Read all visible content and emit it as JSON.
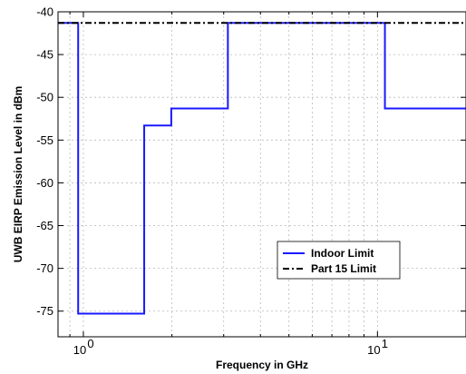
{
  "chart_data": {
    "type": "line",
    "xlabel": "Frequency in GHz",
    "ylabel": "UWB EIRP Emission Level in dBm",
    "xscale": "log",
    "xlim": [
      0.82,
      20
    ],
    "ylim": [
      -78,
      -40
    ],
    "grid": true,
    "legend_position": "lower-right",
    "yticks": [
      -40,
      -45,
      -50,
      -55,
      -60,
      -65,
      -70,
      -75
    ],
    "ytick_labels": [
      "-40",
      "-45",
      "-50",
      "-55",
      "-60",
      "-65",
      "-70",
      "-75"
    ],
    "xticks": [
      1,
      10
    ],
    "xtick_labels": [
      {
        "base": "10",
        "exp": "0"
      },
      {
        "base": "10",
        "exp": "1"
      }
    ],
    "series": [
      {
        "name": "Indoor Limit",
        "color": "#1a1aff",
        "style": "solid",
        "step": true,
        "x": [
          0.82,
          0.96,
          0.96,
          1.61,
          1.61,
          1.99,
          1.99,
          3.1,
          3.1,
          10.6,
          10.6,
          20
        ],
        "y": [
          -41.3,
          -41.3,
          -75.3,
          -75.3,
          -53.3,
          -53.3,
          -51.3,
          -51.3,
          -41.3,
          -41.3,
          -51.3,
          -51.3
        ]
      },
      {
        "name": "Part 15 Limit",
        "color": "#000000",
        "style": "dashdot",
        "step": false,
        "x": [
          0.82,
          20
        ],
        "y": [
          -41.3,
          -41.3
        ]
      }
    ]
  }
}
